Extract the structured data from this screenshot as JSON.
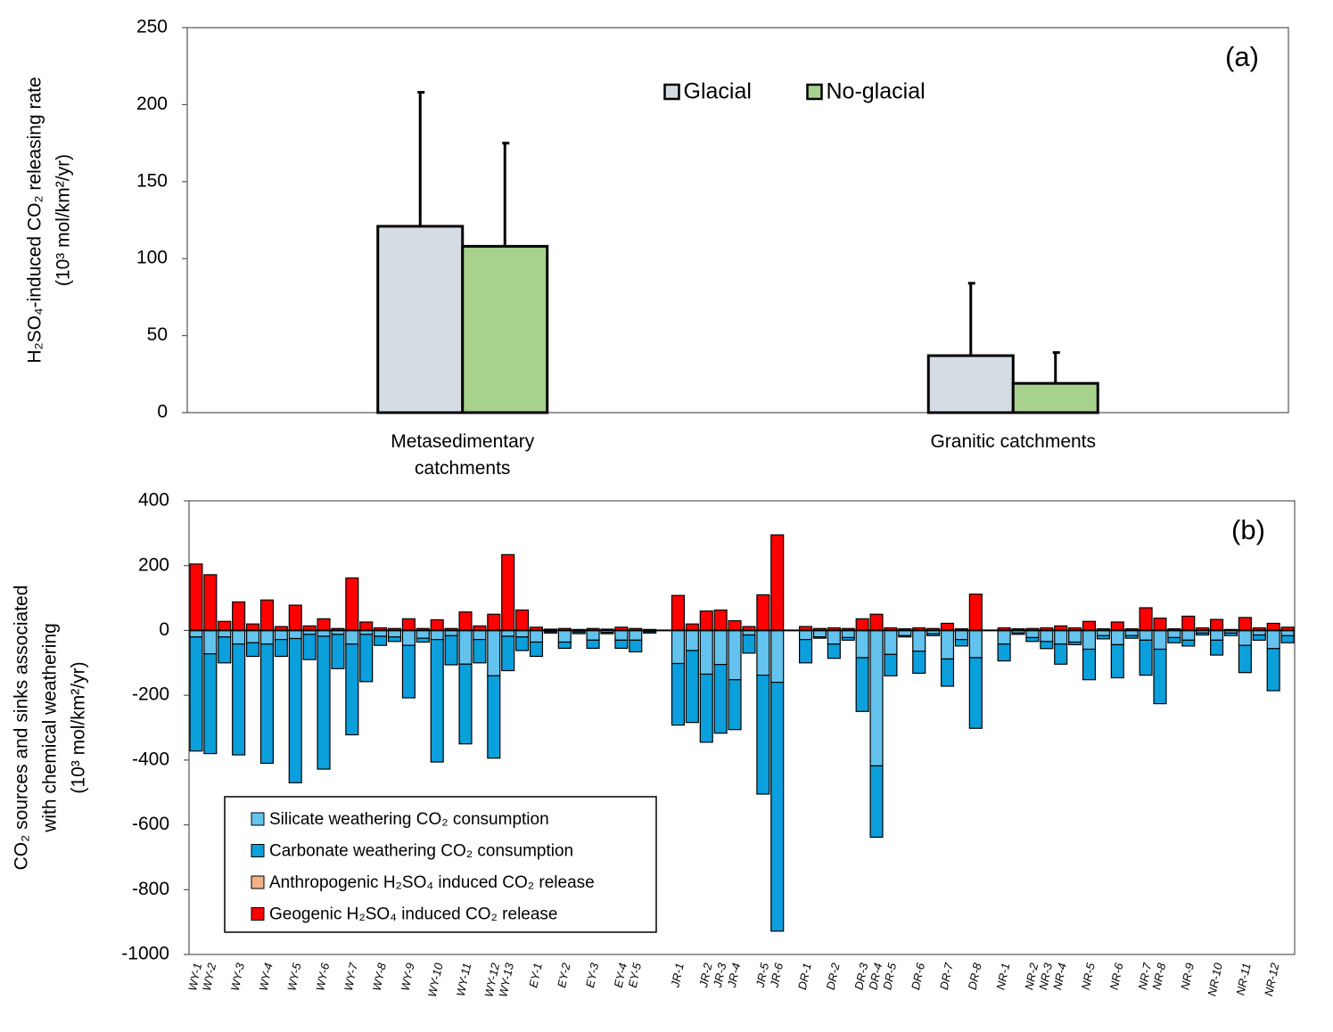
{
  "chart_data": [
    {
      "type": "bar",
      "ylabel": [
        "H₂SO₄-induced CO₂ releasing rate",
        "(10³ mol/km²/yr)"
      ],
      "annotation": "(a)",
      "categories": [
        "Metasedimentary catchments",
        "Granitic catchments"
      ],
      "series": [
        {
          "name": "Glacial",
          "color": "#d6dce4",
          "values": [
            121,
            37
          ],
          "errors": [
            87,
            47
          ]
        },
        {
          "name": "No-glacial",
          "color": "#a9d18e",
          "values": [
            108,
            19
          ],
          "errors": [
            67,
            20
          ]
        }
      ],
      "ylim": [
        0,
        250
      ],
      "yticks": [
        0,
        50,
        100,
        150,
        200,
        250
      ],
      "legend": "upper center"
    },
    {
      "type": "stacked_bar",
      "ylabel": [
        "CO₂ sources and sinks associated",
        "with chemical weathering",
        "(10³ mol/km²/yr)"
      ],
      "annotation": "(b)",
      "categories": [
        "WY-1",
        "WY-2",
        null,
        "WY-3",
        null,
        "WY-4",
        null,
        "WY-5",
        null,
        "WY-6",
        null,
        "WY-7",
        null,
        "WY-8",
        null,
        "WY-9",
        null,
        "WY-10",
        null,
        "WY-11",
        null,
        "WY-12",
        "WY-13",
        null,
        "EY-1",
        null,
        "EY-2",
        null,
        "EY-3",
        null,
        "EY-4",
        "EY-5",
        null,
        null,
        "JR-1",
        null,
        "JR-2",
        "JR-3",
        "JR-4",
        null,
        "JR-5",
        "JR-6",
        null,
        "DR-1",
        null,
        "DR-2",
        null,
        "DR-3",
        "DR-4",
        "DR-5",
        null,
        "DR-6",
        null,
        "DR-7",
        null,
        "DR-8",
        null,
        "NR-1",
        null,
        "NR-2",
        "NR-3",
        "NR-4",
        null,
        "NR-5",
        null,
        "NR-6",
        null,
        "NR-7",
        "NR-8",
        null,
        "NR-9",
        null,
        "NR-10",
        null,
        "NR-11",
        null,
        "NR-12",
        null
      ],
      "series": [
        {
          "name": "Silicate weathering CO₂ consumption",
          "color": "#63c3ee",
          "values": [
            -20,
            -72,
            -20,
            -42,
            -38,
            -42,
            -28,
            -25,
            -12,
            -18,
            -12,
            -42,
            -12,
            -18,
            -20,
            -46,
            -24,
            -28,
            -16,
            -104,
            -28,
            -140,
            -18,
            -20,
            -36,
            -4,
            -36,
            -5,
            -30,
            -6,
            -30,
            -30,
            -4,
            null,
            -102,
            -62,
            -135,
            -105,
            -152,
            -14,
            -138,
            -160,
            null,
            -28,
            -20,
            -42,
            -22,
            -84,
            -418,
            -74,
            -16,
            -64,
            -10,
            -88,
            -28,
            -84,
            null,
            -42,
            -8,
            -22,
            -34,
            -42,
            -36,
            -58,
            -16,
            -44,
            -16,
            -30,
            -58,
            -22,
            -30,
            -8,
            -30,
            -8,
            -46,
            -14,
            -56,
            -16
          ]
        },
        {
          "name": "Carbonate weathering CO₂ consumption",
          "color": "#0b9fdc",
          "values": [
            -352,
            -308,
            -80,
            -342,
            -42,
            -368,
            -52,
            -445,
            -78,
            -410,
            -106,
            -280,
            -146,
            -28,
            -14,
            -162,
            -12,
            -378,
            -90,
            -246,
            -72,
            -254,
            -106,
            -42,
            -44,
            -4,
            -19,
            -5,
            -25,
            -4,
            -25,
            -36,
            -4,
            null,
            -190,
            -222,
            -210,
            -212,
            -154,
            -56,
            -367,
            -768,
            null,
            -72,
            -4,
            -44,
            -8,
            -166,
            -220,
            -66,
            -4,
            -68,
            -6,
            -84,
            -20,
            -218,
            null,
            -52,
            -4,
            -12,
            -22,
            -62,
            -8,
            -94,
            -10,
            -102,
            -8,
            -108,
            -168,
            -16,
            -18,
            -6,
            -46,
            -8,
            -84,
            -16,
            -130,
            -22
          ]
        },
        {
          "name": "Anthropogenic H₂SO₄ induced CO₂ release",
          "color": "#f4b183",
          "values": [
            0,
            0,
            0,
            0,
            0,
            0,
            0,
            0,
            0,
            0,
            0,
            0,
            0,
            0,
            0,
            0,
            0,
            0,
            0,
            0,
            0,
            0,
            0,
            0,
            0,
            0,
            0,
            0,
            0,
            0,
            0,
            0,
            0,
            null,
            0,
            0,
            0,
            0,
            0,
            0,
            0,
            0,
            null,
            0,
            0,
            0,
            0,
            0,
            0,
            0,
            0,
            0,
            0,
            0,
            0,
            0,
            null,
            0,
            0,
            0,
            0,
            0,
            0,
            0,
            0,
            0,
            0,
            0,
            0,
            0,
            0,
            0,
            0,
            0,
            0,
            0,
            0,
            0
          ]
        },
        {
          "name": "Geogenic H₂SO₄ induced CO₂ release",
          "color": "#ff0000",
          "values": [
            205,
            172,
            28,
            88,
            20,
            94,
            12,
            78,
            14,
            36,
            6,
            162,
            26,
            8,
            6,
            36,
            6,
            33,
            6,
            57,
            14,
            50,
            234,
            63,
            10,
            4,
            6,
            3,
            6,
            4,
            10,
            6,
            3,
            null,
            108,
            20,
            60,
            63,
            30,
            12,
            110,
            295,
            null,
            12,
            6,
            8,
            6,
            36,
            50,
            8,
            5,
            8,
            6,
            22,
            5,
            112,
            null,
            8,
            5,
            6,
            8,
            14,
            8,
            28,
            5,
            26,
            5,
            70,
            38,
            5,
            44,
            8,
            34,
            3,
            40,
            8,
            22,
            10
          ]
        }
      ],
      "ylim": [
        -1000,
        400
      ],
      "yticks": [
        -1000,
        -800,
        -600,
        -400,
        -200,
        0,
        200,
        400
      ],
      "legend": "lower left"
    }
  ]
}
